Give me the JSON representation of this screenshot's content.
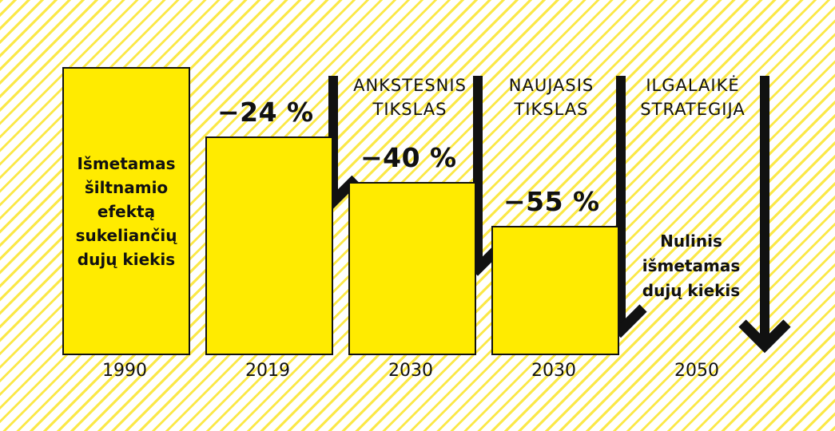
{
  "chart_data": {
    "type": "bar",
    "categories": [
      "1990",
      "2019",
      "2030",
      "2030",
      "2050"
    ],
    "values": [
      100,
      76,
      60,
      45,
      0
    ],
    "bar_text": "Išmetamas\nšiltnamio\nefektą\nsukeliančių\ndujų kiekis",
    "change_labels": [
      "",
      "−24 %",
      "−40 %",
      "−55 %",
      ""
    ],
    "target_labels": [
      "ANKSTESNIS\nTIKSLAS",
      "NAUJASIS\nTIKSLAS",
      "ILGALAIKĖ\nSTRATEGIJA"
    ],
    "end_note": "Nulinis\nišmetamas\ndujų kiekis",
    "ylim": [
      0,
      100
    ],
    "grid": false,
    "colors": {
      "bar": "#ffeb00",
      "outline": "#111111",
      "stripes": "#fae428"
    }
  }
}
